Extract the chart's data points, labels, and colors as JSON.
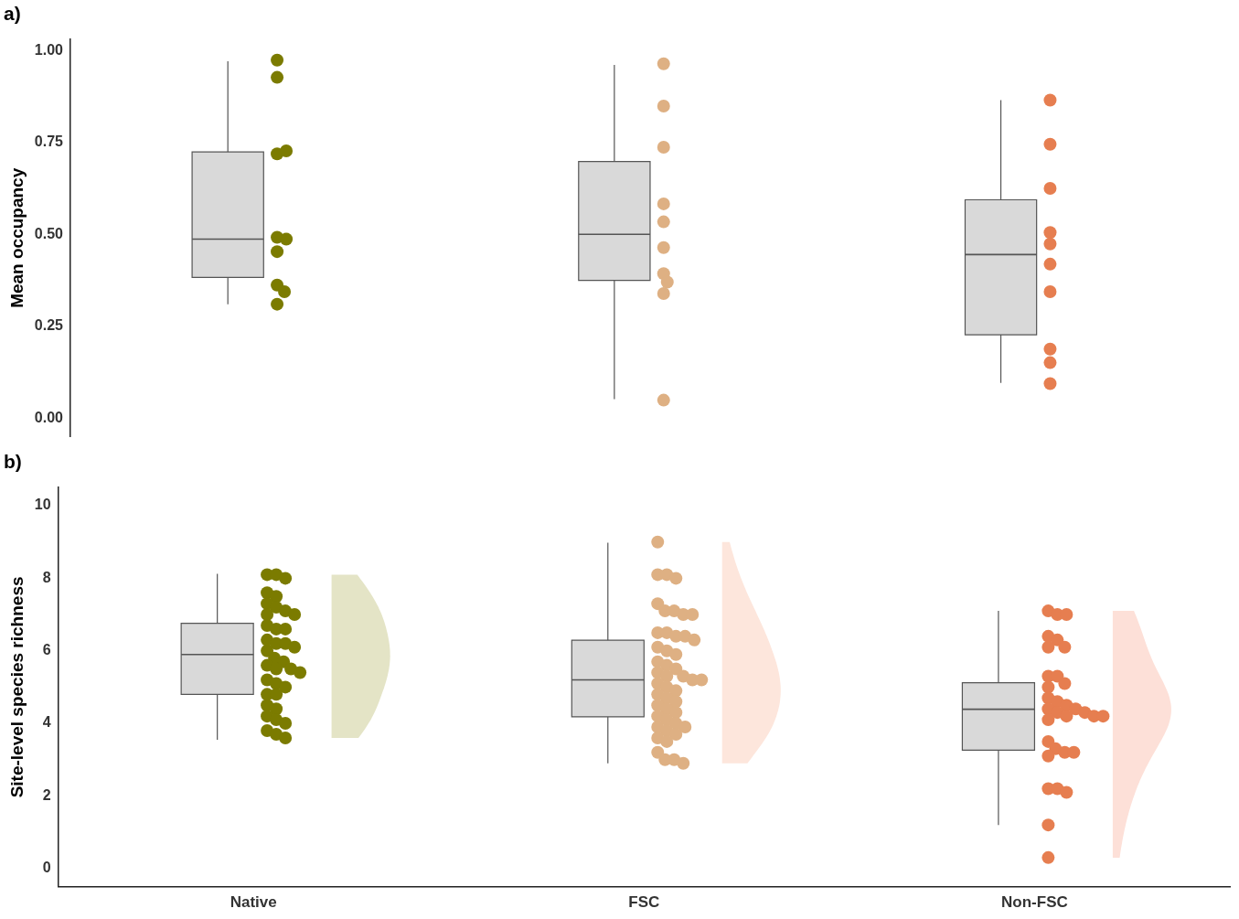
{
  "chart_data": [
    {
      "type": "box",
      "title": "a)",
      "ylabel": "Mean occupancy",
      "categories": [
        "Native",
        "FSC",
        "Non-FSC"
      ],
      "boxes": [
        {
          "low": 0.31,
          "q1": 0.383,
          "median": 0.487,
          "q3": 0.724,
          "high": 0.971
        },
        {
          "low": 0.052,
          "q1": 0.375,
          "median": 0.5,
          "q3": 0.698,
          "high": 0.961
        },
        {
          "low": 0.096,
          "q1": 0.227,
          "median": 0.445,
          "q3": 0.594,
          "high": 0.865
        }
      ],
      "series": [
        {
          "type": "scatter",
          "color": "#7b7b00",
          "x": [
            "Native",
            "Native",
            "Native",
            "Native",
            "Native",
            "Native",
            "Native",
            "Native",
            "Native",
            "Native"
          ],
          "values": [
            0.974,
            0.927,
            0.719,
            0.727,
            0.492,
            0.487,
            0.453,
            0.362,
            0.344,
            0.31
          ]
        },
        {
          "type": "scatter",
          "color": "#deb083",
          "x": [
            "FSC",
            "FSC",
            "FSC",
            "FSC",
            "FSC",
            "FSC",
            "FSC",
            "FSC",
            "FSC",
            "FSC"
          ],
          "values": [
            0.964,
            0.849,
            0.737,
            0.583,
            0.534,
            0.464,
            0.393,
            0.37,
            0.339,
            0.049
          ]
        },
        {
          "type": "scatter",
          "color": "#e67e50",
          "x": [
            "Non-FSC",
            "Non-FSC",
            "Non-FSC",
            "Non-FSC",
            "Non-FSC",
            "Non-FSC",
            "Non-FSC",
            "Non-FSC",
            "Non-FSC",
            "Non-FSC"
          ],
          "values": [
            0.865,
            0.745,
            0.625,
            0.505,
            0.474,
            0.419,
            0.344,
            0.188,
            0.151,
            0.094
          ]
        }
      ],
      "ylim": [
        -0.05,
        1.03
      ],
      "yticks": [
        {
          "value": 0,
          "label": "0.00"
        },
        {
          "value": 0.25,
          "label": "0.25"
        },
        {
          "value": 0.5,
          "label": "0.50"
        },
        {
          "value": 0.75,
          "label": "0.75"
        },
        {
          "value": 1,
          "label": "1.00"
        }
      ],
      "marker": "circle",
      "tick_labels": "y"
    },
    {
      "type": "box",
      "title": "b)",
      "ylabel": "Site-level species richness",
      "categories": [
        "Native",
        "FSC",
        "Non-FSC"
      ],
      "boxes": [
        {
          "low": 3.55,
          "q1": 4.8,
          "median": 5.9,
          "q3": 6.76,
          "high": 8.12
        },
        {
          "low": 2.9,
          "q1": 4.18,
          "median": 5.2,
          "q3": 6.29,
          "high": 8.98
        },
        {
          "low": 1.2,
          "q1": 3.26,
          "median": 4.39,
          "q3": 5.12,
          "high": 7.1
        }
      ],
      "series": [
        {
          "type": "scatter",
          "color": "#7b7b00",
          "x": [
            "Native",
            "Native",
            "Native",
            "Native",
            "Native",
            "Native",
            "Native",
            "Native",
            "Native",
            "Native",
            "Native",
            "Native",
            "Native",
            "Native",
            "Native",
            "Native",
            "Native",
            "Native",
            "Native",
            "Native",
            "Native",
            "Native",
            "Native",
            "Native",
            "Native",
            "Native",
            "Native",
            "Native",
            "Native",
            "Native",
            "Native",
            "Native",
            "Native",
            "Native",
            "Native",
            "Native",
            "Native"
          ],
          "values": [
            8.1,
            8.1,
            8.0,
            7.6,
            7.5,
            7.3,
            7.2,
            7.1,
            7.0,
            7.0,
            6.7,
            6.6,
            6.6,
            6.3,
            6.2,
            6.2,
            6.1,
            6.0,
            5.8,
            5.7,
            5.6,
            5.5,
            5.5,
            5.4,
            5.2,
            5.1,
            5.0,
            4.8,
            4.8,
            4.5,
            4.4,
            4.2,
            4.1,
            4.0,
            3.8,
            3.7,
            3.6
          ]
        },
        {
          "type": "scatter",
          "color": "#deb083",
          "x": [
            "FSC",
            "FSC",
            "FSC",
            "FSC",
            "FSC",
            "FSC",
            "FSC",
            "FSC",
            "FSC",
            "FSC",
            "FSC",
            "FSC",
            "FSC",
            "FSC",
            "FSC",
            "FSC",
            "FSC",
            "FSC",
            "FSC",
            "FSC",
            "FSC",
            "FSC",
            "FSC",
            "FSC",
            "FSC",
            "FSC",
            "FSC",
            "FSC",
            "FSC",
            "FSC",
            "FSC",
            "FSC",
            "FSC",
            "FSC",
            "FSC",
            "FSC",
            "FSC",
            "FSC",
            "FSC",
            "FSC",
            "FSC",
            "FSC",
            "FSC",
            "FSC",
            "FSC",
            "FSC",
            "FSC"
          ],
          "values": [
            9.0,
            8.1,
            8.1,
            8.0,
            7.3,
            7.1,
            7.1,
            7.0,
            7.0,
            6.5,
            6.5,
            6.4,
            6.4,
            6.3,
            6.1,
            6.0,
            5.9,
            5.7,
            5.6,
            5.5,
            5.4,
            5.3,
            5.3,
            5.2,
            5.2,
            5.1,
            5.0,
            4.9,
            4.8,
            4.7,
            4.6,
            4.5,
            4.4,
            4.3,
            4.2,
            4.1,
            4.0,
            3.9,
            3.9,
            3.8,
            3.7,
            3.6,
            3.5,
            3.2,
            3.0,
            3.0,
            2.9
          ]
        },
        {
          "type": "scatter",
          "color": "#e67e50",
          "x": [
            "Non-FSC",
            "Non-FSC",
            "Non-FSC",
            "Non-FSC",
            "Non-FSC",
            "Non-FSC",
            "Non-FSC",
            "Non-FSC",
            "Non-FSC",
            "Non-FSC",
            "Non-FSC",
            "Non-FSC",
            "Non-FSC",
            "Non-FSC",
            "Non-FSC",
            "Non-FSC",
            "Non-FSC",
            "Non-FSC",
            "Non-FSC",
            "Non-FSC",
            "Non-FSC",
            "Non-FSC",
            "Non-FSC",
            "Non-FSC",
            "Non-FSC",
            "Non-FSC",
            "Non-FSC",
            "Non-FSC",
            "Non-FSC",
            "Non-FSC",
            "Non-FSC",
            "Non-FSC"
          ],
          "values": [
            7.1,
            7.0,
            7.0,
            6.4,
            6.3,
            6.1,
            6.1,
            5.3,
            5.3,
            5.1,
            5.0,
            4.7,
            4.6,
            4.5,
            4.4,
            4.4,
            4.3,
            4.3,
            4.2,
            4.2,
            4.2,
            4.1,
            3.5,
            3.3,
            3.2,
            3.2,
            3.1,
            2.2,
            2.2,
            2.1,
            1.2,
            0.3
          ]
        },
        {
          "type": "other",
          "color": "#e4e4c6",
          "x": [
            "Native"
          ],
          "values": [
            null
          ]
        },
        {
          "type": "other",
          "color": "#fde6dc",
          "x": [
            "FSC"
          ],
          "values": [
            null
          ]
        },
        {
          "type": "other",
          "color": "#fde0d8",
          "x": [
            "Non-FSC"
          ],
          "values": [
            null
          ]
        }
      ],
      "ylim": [
        -0.5,
        10.5
      ],
      "yticks": [
        0,
        2,
        4,
        6,
        8,
        10
      ],
      "marker": "circle"
    }
  ]
}
